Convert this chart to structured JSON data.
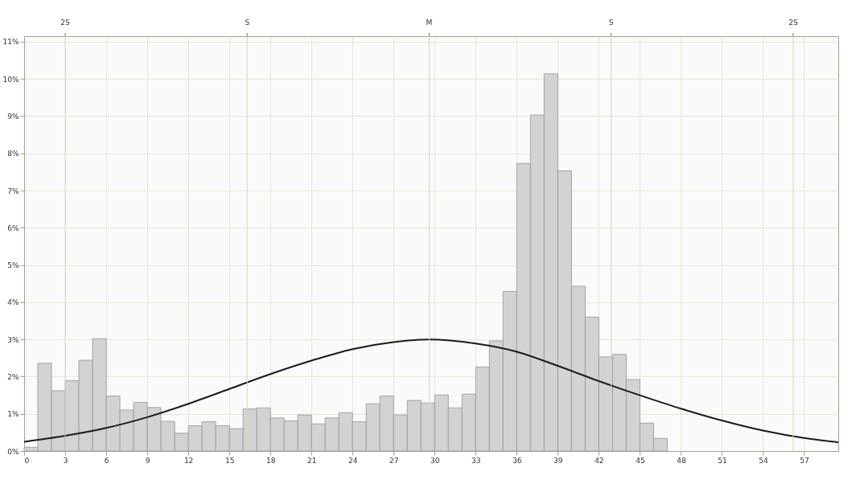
{
  "chart_data": {
    "type": "histogram",
    "xlim": [
      0,
      59.5
    ],
    "xticks": [
      0,
      3,
      6,
      9,
      12,
      15,
      18,
      21,
      24,
      27,
      30,
      33,
      36,
      39,
      42,
      45,
      48,
      51,
      54,
      57
    ],
    "ref_lines": [
      {
        "axis": "x",
        "value": 3.0,
        "label": "2S"
      },
      {
        "axis": "x",
        "value": 16.3,
        "label": "S"
      },
      {
        "axis": "x",
        "value": 29.6,
        "label": "M"
      },
      {
        "axis": "x",
        "value": 42.9,
        "label": "S"
      },
      {
        "axis": "x",
        "value": 56.2,
        "label": "2S"
      }
    ],
    "ylim": [
      0,
      11.15
    ],
    "yticks": [
      {
        "value": 0,
        "label": "0%"
      },
      {
        "value": 1,
        "label": "1%"
      },
      {
        "value": 2,
        "label": "2%"
      },
      {
        "value": 3,
        "label": "3%"
      },
      {
        "value": 4,
        "label": "4%"
      },
      {
        "value": 5,
        "label": "5%"
      },
      {
        "value": 6,
        "label": "6%"
      },
      {
        "value": 7,
        "label": "7%"
      },
      {
        "value": 8,
        "label": "8%"
      },
      {
        "value": 9,
        "label": "9%"
      },
      {
        "value": 10,
        "label": "10%"
      },
      {
        "value": 11,
        "label": "11%"
      }
    ],
    "grid": true,
    "series": [
      {
        "color": "#d3d3d3",
        "bins": [
          0,
          1,
          2,
          3,
          4,
          5,
          6,
          7,
          8,
          9,
          10,
          11,
          12,
          13,
          14,
          15,
          16,
          17,
          18,
          19,
          20,
          21,
          22,
          23,
          24,
          25,
          26,
          27,
          28,
          29,
          30,
          31,
          32,
          33,
          34,
          35,
          36,
          37,
          38,
          39,
          40,
          41,
          42,
          43,
          44,
          45,
          46,
          47
        ],
        "values": [
          0.1,
          2.36,
          1.62,
          1.89,
          2.44,
          3.02,
          1.48,
          1.1,
          1.31,
          1.17,
          0.8,
          0.48,
          0.68,
          0.79,
          0.68,
          0.6,
          1.13,
          1.16,
          0.89,
          0.81,
          0.97,
          0.73,
          0.89,
          1.03,
          0.79,
          1.27,
          1.48,
          0.97,
          1.36,
          1.29,
          1.51,
          1.16,
          1.53,
          2.26,
          2.96,
          4.29,
          7.73,
          9.03,
          10.14,
          7.53,
          4.43,
          3.6,
          2.53,
          2.6,
          1.92,
          0.75,
          0.34
        ]
      },
      {
        "type": "line",
        "color": "#1a1a1a",
        "x": [
          0,
          3,
          6,
          9,
          12,
          15,
          18,
          21,
          24,
          27,
          29.6,
          33,
          36,
          39,
          42,
          45,
          48,
          51,
          54,
          57,
          59.5
        ],
        "values": [
          0.25,
          0.41,
          0.62,
          0.91,
          1.27,
          1.67,
          2.07,
          2.43,
          2.74,
          2.93,
          3.0,
          2.89,
          2.67,
          2.29,
          1.88,
          1.5,
          1.14,
          0.82,
          0.55,
          0.35,
          0.24
        ]
      }
    ]
  }
}
